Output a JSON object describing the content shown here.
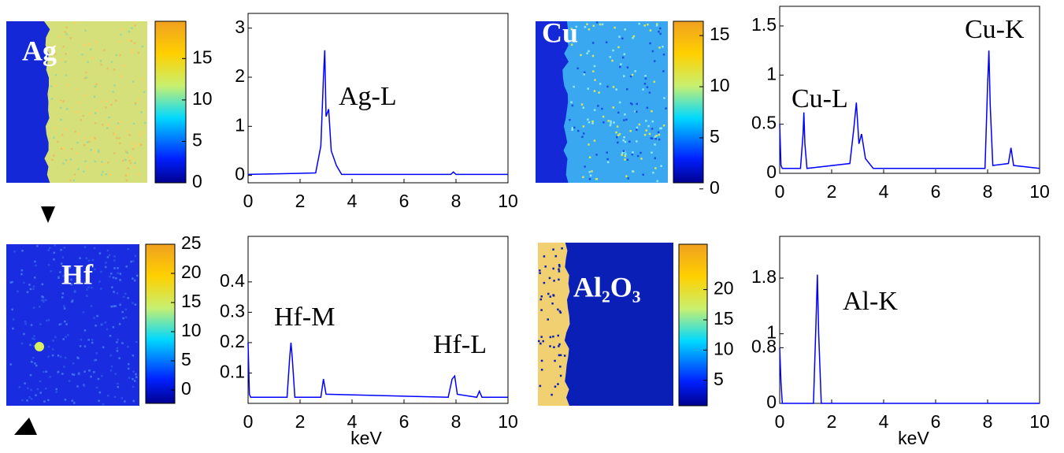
{
  "chart_data": [
    {
      "type": "map",
      "label": "Ag",
      "colorbar": {
        "ylim": [
          0,
          19.5
        ],
        "yticks": [
          0,
          5,
          10,
          15
        ]
      }
    },
    {
      "type": "line",
      "color": "#0000ff",
      "annotations": [
        "Ag-L"
      ],
      "x": [
        0,
        2.6,
        2.8,
        2.9,
        2.95,
        3.0,
        3.1,
        3.2,
        3.4,
        3.6,
        7.8,
        7.9,
        8.0,
        10
      ],
      "values": [
        0.02,
        0.05,
        0.6,
        2.0,
        2.55,
        1.2,
        1.35,
        0.5,
        0.2,
        0.02,
        0.02,
        0.07,
        0.02,
        0.02
      ],
      "xlim": [
        0,
        10
      ],
      "xticks": [
        0,
        2,
        4,
        6,
        8,
        10
      ],
      "ylim": [
        -0.15,
        3.3
      ],
      "yticks": [
        0,
        1,
        2,
        3
      ]
    },
    {
      "type": "map",
      "label": "Cu",
      "colorbar": {
        "ylim": [
          0.6,
          16.4
        ],
        "yticks": [
          0,
          5,
          10,
          15
        ]
      }
    },
    {
      "type": "line",
      "color": "#0000ff",
      "annotations": [
        "Cu-L",
        "Cu-K"
      ],
      "x": [
        0,
        0.05,
        0.1,
        0.8,
        0.9,
        0.93,
        0.97,
        1.05,
        2.7,
        2.85,
        2.95,
        3.05,
        3.15,
        3.3,
        3.6,
        7.9,
        8.0,
        8.05,
        8.1,
        8.2,
        8.8,
        8.9,
        9.0,
        10
      ],
      "values": [
        0.5,
        0.08,
        0.05,
        0.05,
        0.4,
        0.62,
        0.3,
        0.05,
        0.1,
        0.45,
        0.72,
        0.3,
        0.4,
        0.15,
        0.05,
        0.05,
        0.9,
        1.25,
        0.7,
        0.08,
        0.1,
        0.26,
        0.08,
        0.05
      ],
      "xlim": [
        0,
        10
      ],
      "xticks": [
        0,
        2,
        4,
        6,
        8,
        10
      ],
      "ylim": [
        0,
        1.7
      ],
      "yticks": [
        0,
        0.5,
        1,
        1.5
      ]
    },
    {
      "type": "map",
      "label": "Hf",
      "colorbar": {
        "ylim": [
          -2.3,
          25
        ],
        "yticks": [
          0,
          5,
          10,
          15,
          20,
          25
        ]
      }
    },
    {
      "type": "line",
      "color": "#0000ff",
      "annotations": [
        "Hf-M",
        "Hf-L"
      ],
      "xlabel": "keV",
      "x": [
        0,
        0.05,
        0.1,
        1.5,
        1.6,
        1.65,
        1.7,
        1.8,
        2.8,
        2.9,
        3.0,
        7.7,
        7.85,
        7.95,
        8.05,
        8.8,
        8.9,
        9.0,
        10
      ],
      "values": [
        0.2,
        0.03,
        0.02,
        0.02,
        0.15,
        0.2,
        0.15,
        0.02,
        0.02,
        0.08,
        0.03,
        0.02,
        0.08,
        0.09,
        0.03,
        0.02,
        0.04,
        0.02,
        0.02
      ],
      "xlim": [
        0,
        10
      ],
      "xticks": [
        0,
        2,
        4,
        6,
        8,
        10
      ],
      "ylim": [
        0,
        0.55
      ],
      "yticks": [
        0.1,
        0.2,
        0.3,
        0.4
      ]
    },
    {
      "type": "map",
      "label": "Al₂O₃",
      "colorbar": {
        "ylim": [
          0.8,
          27.5
        ],
        "yticks": [
          5,
          10,
          15,
          20
        ]
      }
    },
    {
      "type": "line",
      "color": "#0000ff",
      "annotations": [
        "Al-K"
      ],
      "xlabel": "keV",
      "x": [
        0,
        0.05,
        0.1,
        1.3,
        1.4,
        1.45,
        1.5,
        1.6,
        10
      ],
      "values": [
        0.8,
        0.3,
        0,
        0,
        1.2,
        1.85,
        1.0,
        0,
        0
      ],
      "xlim": [
        0,
        10
      ],
      "xticks": [
        0,
        2,
        4,
        6,
        8,
        10
      ],
      "ylim": [
        0,
        2.4
      ],
      "yticks": [
        0,
        0.8,
        1,
        1.8
      ]
    }
  ]
}
